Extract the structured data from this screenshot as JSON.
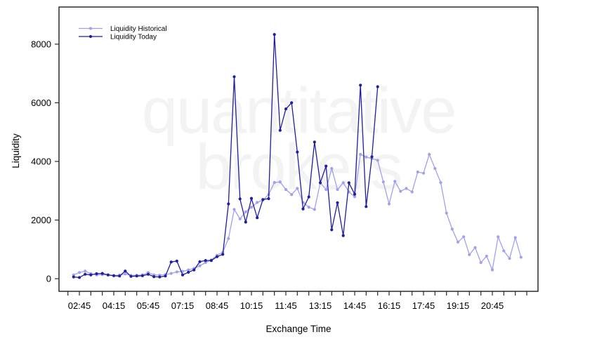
{
  "chart_data": {
    "type": "line",
    "title": "",
    "xlabel": "Exchange Time",
    "ylabel": "Liquidity",
    "ylim": [
      0,
      8600
    ],
    "yticks": [
      0,
      2000,
      4000,
      6000,
      8000
    ],
    "x_major_ticks": [
      "02:45",
      "04:15",
      "05:45",
      "07:15",
      "08:45",
      "10:15",
      "11:45",
      "13:15",
      "14:45",
      "16:15",
      "17:45",
      "19:15",
      "20:45"
    ],
    "x_minor_interval_min": 30,
    "x_minor_first": "02:15",
    "x_minor_last": "22:15",
    "grid": false,
    "legend_position": "top-left",
    "frame_color": "#2b2b2b",
    "watermark": {
      "line1": "quantitative",
      "line2": "brokers"
    },
    "series": [
      {
        "name": "Liquidity Historical",
        "color": "#a0a0ef",
        "x": [
          "02:30",
          "02:45",
          "03:00",
          "03:15",
          "03:30",
          "03:45",
          "04:00",
          "04:15",
          "04:30",
          "04:45",
          "05:00",
          "05:15",
          "05:30",
          "05:45",
          "06:00",
          "06:15",
          "06:30",
          "06:45",
          "07:00",
          "07:15",
          "07:30",
          "07:45",
          "08:00",
          "08:15",
          "08:30",
          "08:45",
          "09:00",
          "09:15",
          "09:30",
          "09:45",
          "10:00",
          "10:15",
          "10:30",
          "10:45",
          "11:00",
          "11:15",
          "11:30",
          "11:45",
          "12:00",
          "12:15",
          "12:30",
          "12:45",
          "13:00",
          "13:15",
          "13:30",
          "13:45",
          "14:00",
          "14:15",
          "14:30",
          "14:45",
          "15:00",
          "15:15",
          "15:30",
          "15:45",
          "16:00",
          "16:15",
          "16:30",
          "16:45",
          "17:00",
          "17:15",
          "17:30",
          "17:45",
          "18:00",
          "18:15",
          "18:30",
          "18:45",
          "19:00",
          "19:15",
          "19:30",
          "19:45",
          "20:00",
          "20:15",
          "20:30",
          "20:45",
          "21:00",
          "21:15",
          "21:30",
          "21:45",
          "22:00"
        ],
        "values": [
          130,
          210,
          260,
          170,
          130,
          140,
          130,
          110,
          120,
          160,
          110,
          120,
          130,
          210,
          130,
          120,
          140,
          180,
          230,
          250,
          300,
          350,
          440,
          550,
          640,
          800,
          900,
          1370,
          2360,
          2040,
          2280,
          2440,
          2600,
          2680,
          2870,
          3280,
          3300,
          3040,
          2870,
          3080,
          2600,
          2440,
          2360,
          3270,
          3040,
          3760,
          3040,
          3270,
          2960,
          2800,
          4240,
          4150,
          4100,
          4040,
          3300,
          2550,
          3320,
          2980,
          3080,
          2960,
          3640,
          3600,
          4240,
          3760,
          3280,
          2240,
          1690,
          1250,
          1430,
          820,
          1060,
          550,
          770,
          300,
          1430,
          950,
          690,
          1400,
          730
        ]
      },
      {
        "name": "Liquidity Today",
        "color": "#1e1ea0",
        "x": [
          "02:30",
          "02:45",
          "03:00",
          "03:15",
          "03:30",
          "03:45",
          "04:00",
          "04:15",
          "04:30",
          "04:45",
          "05:00",
          "05:15",
          "05:30",
          "05:45",
          "06:00",
          "06:15",
          "06:30",
          "06:45",
          "07:00",
          "07:15",
          "07:30",
          "07:45",
          "08:00",
          "08:15",
          "08:30",
          "08:45",
          "09:00",
          "09:15",
          "09:30",
          "09:45",
          "10:00",
          "10:15",
          "10:30",
          "10:45",
          "11:00",
          "11:15",
          "11:30",
          "11:45",
          "12:00",
          "12:15",
          "12:30",
          "12:45",
          "13:00",
          "13:15",
          "13:30",
          "13:45",
          "14:00",
          "14:15",
          "14:30",
          "14:45",
          "15:00",
          "15:15",
          "15:30",
          "15:45"
        ],
        "values": [
          60,
          40,
          150,
          130,
          170,
          180,
          130,
          100,
          90,
          260,
          80,
          90,
          100,
          150,
          70,
          60,
          90,
          570,
          600,
          130,
          220,
          300,
          580,
          620,
          620,
          750,
          830,
          2550,
          6890,
          2720,
          1930,
          2740,
          2080,
          2700,
          2730,
          8330,
          5060,
          5790,
          6000,
          4320,
          2380,
          2790,
          4660,
          3270,
          3840,
          1670,
          2590,
          1470,
          3270,
          2880,
          6600,
          2460,
          4160,
          6550
        ]
      }
    ]
  }
}
